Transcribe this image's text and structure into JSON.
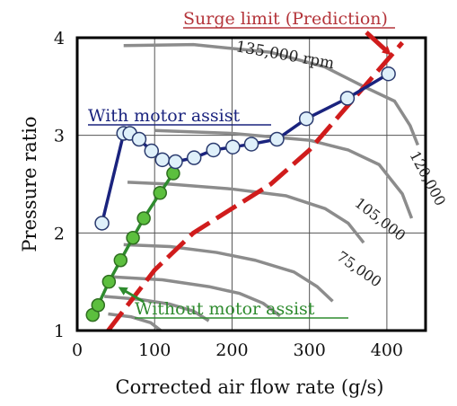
{
  "chart_data": {
    "type": "line",
    "title": "",
    "xlabel": "Corrected air flow rate (g/s)",
    "ylabel": "Pressure ratio",
    "xlim": [
      0,
      450
    ],
    "ylim": [
      1,
      4
    ],
    "x_ticks": [
      "0",
      "100",
      "200",
      "300",
      "400"
    ],
    "y_ticks": [
      "1",
      "2",
      "3",
      "4"
    ],
    "grid": true,
    "annotations": {
      "surge_limit": "Surge limit (Prediction)",
      "with_motor": "With motor assist",
      "without_motor": "Without motor assist",
      "speed_135": "135,000 rpm",
      "speed_120": "120,000",
      "speed_105": "105,000",
      "speed_75": "75,000"
    },
    "speed_lines": [
      {
        "label": "135,000 rpm",
        "x": [
          60,
          150,
          250,
          320,
          370,
          410,
          430,
          440
        ],
        "y": [
          3.92,
          3.93,
          3.85,
          3.7,
          3.5,
          3.35,
          3.1,
          2.9
        ]
      },
      {
        "label": "120,000",
        "x": [
          100,
          200,
          300,
          350,
          390,
          420,
          432
        ],
        "y": [
          3.05,
          3.02,
          2.95,
          2.85,
          2.7,
          2.4,
          2.15
        ]
      },
      {
        "label": "105,000",
        "x": [
          65,
          120,
          200,
          270,
          320,
          350,
          370
        ],
        "y": [
          2.52,
          2.5,
          2.45,
          2.38,
          2.25,
          2.1,
          1.9
        ]
      },
      {
        "label": "75,000",
        "x": [
          60,
          120,
          180,
          230,
          280,
          310,
          330
        ],
        "y": [
          1.88,
          1.86,
          1.8,
          1.72,
          1.6,
          1.45,
          1.3
        ]
      },
      {
        "label": "",
        "x": [
          45,
          110,
          170,
          210,
          240,
          262
        ],
        "y": [
          1.55,
          1.52,
          1.45,
          1.38,
          1.28,
          1.15
        ]
      },
      {
        "label": "",
        "x": [
          35,
          80,
          120,
          150,
          170
        ],
        "y": [
          1.35,
          1.32,
          1.27,
          1.2,
          1.1
        ]
      },
      {
        "label": "",
        "x": [
          40,
          70,
          95,
          108
        ],
        "y": [
          1.17,
          1.14,
          1.08,
          1.0
        ]
      }
    ],
    "series": [
      {
        "name": "With motor assist",
        "color": "#1a237e",
        "x": [
          32,
          60,
          68,
          80,
          96,
          110,
          127,
          151,
          176,
          201,
          225,
          258,
          296,
          349,
          402
        ],
        "y": [
          2.1,
          3.02,
          3.02,
          2.96,
          2.84,
          2.75,
          2.73,
          2.77,
          2.85,
          2.88,
          2.91,
          2.96,
          3.17,
          3.38,
          3.63
        ]
      },
      {
        "name": "Without motor assist",
        "color": "#2e8b2e",
        "x": [
          20,
          27,
          41,
          56,
          72,
          86,
          107,
          124
        ],
        "y": [
          1.16,
          1.26,
          1.5,
          1.72,
          1.95,
          2.15,
          2.41,
          2.61
        ]
      },
      {
        "name": "Surge limit (Prediction)",
        "color": "#d01c1c",
        "x": [
          40,
          100,
          150,
          250,
          300,
          420
        ],
        "y": [
          1.0,
          1.62,
          2.0,
          2.5,
          2.85,
          3.95
        ]
      }
    ]
  }
}
